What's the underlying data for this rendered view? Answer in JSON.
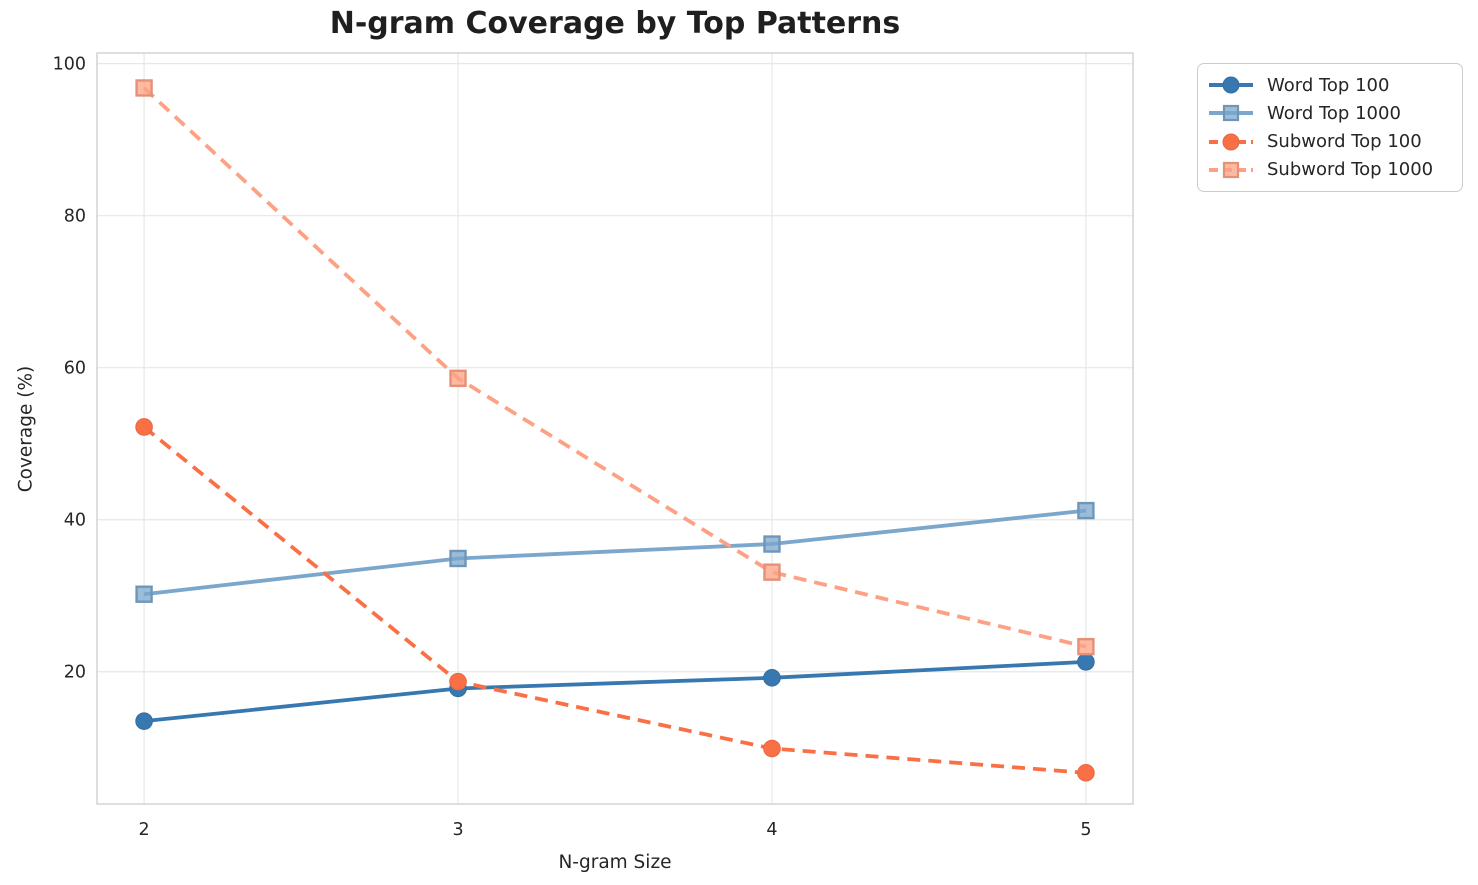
{
  "chart_data": {
    "type": "line",
    "title": "N-gram Coverage by Top Patterns",
    "xlabel": "N-gram Size",
    "ylabel": "Coverage (%)",
    "x": [
      2,
      3,
      4,
      5
    ],
    "x_tick_labels": [
      "2",
      "3",
      "4",
      "5"
    ],
    "y_ticks": [
      20,
      40,
      60,
      80,
      100
    ],
    "y_tick_labels": [
      "20",
      "40",
      "60",
      "80",
      "100"
    ],
    "xlim": [
      1.85,
      5.15
    ],
    "ylim": [
      2.6,
      101.4
    ],
    "grid": true,
    "legend_position": "outside-top-right",
    "series": [
      {
        "name": "Word Top 100",
        "values": [
          13.5,
          17.8,
          19.2,
          21.3
        ],
        "color": "#3878b0",
        "line_style": "solid",
        "marker": "circle"
      },
      {
        "name": "Word Top 1000",
        "values": [
          30.2,
          34.9,
          36.8,
          41.2
        ],
        "color": "#7ba7cd",
        "line_style": "solid",
        "marker": "square"
      },
      {
        "name": "Subword Top 100",
        "values": [
          52.2,
          18.7,
          9.9,
          6.7
        ],
        "color": "#fa7046",
        "line_style": "dashed",
        "marker": "circle"
      },
      {
        "name": "Subword Top 1000",
        "values": [
          96.8,
          58.6,
          33.1,
          23.3
        ],
        "color": "#fda184",
        "line_style": "dashed",
        "marker": "square"
      }
    ],
    "style": {
      "background": "#ffffff",
      "grid_color": "#e7e7e7",
      "frame_color": "#d0d0d0",
      "tick_text_color": "#262626",
      "title_color": "#1f1f1f",
      "line_width": 3.8,
      "dash_pattern": "13 8"
    }
  }
}
